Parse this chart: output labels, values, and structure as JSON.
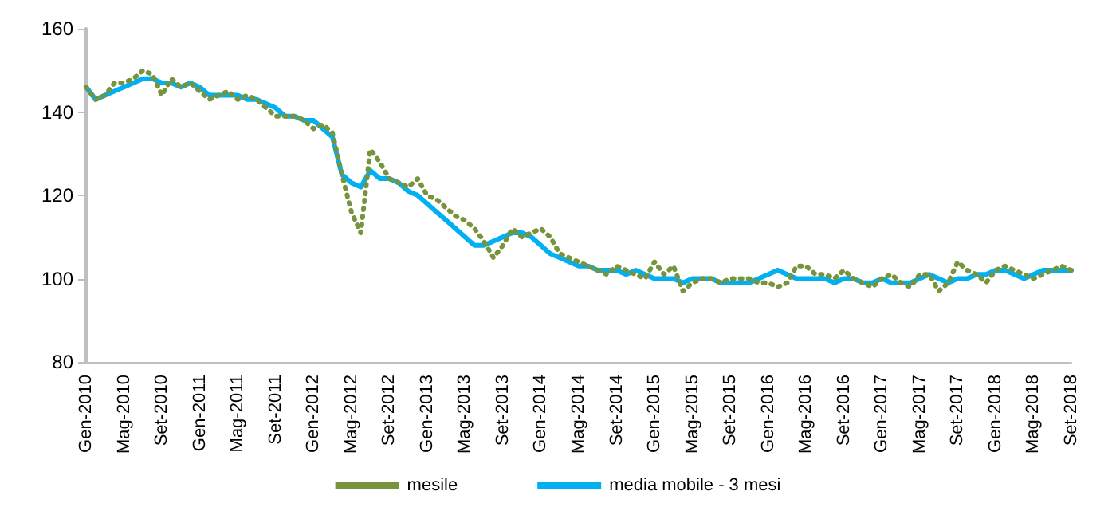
{
  "chart_data": {
    "type": "line",
    "categories": [
      "Gen-2010",
      null,
      null,
      null,
      "Mag-2010",
      null,
      null,
      null,
      "Set-2010",
      null,
      null,
      null,
      "Gen-2011",
      null,
      null,
      null,
      "Mag-2011",
      null,
      null,
      null,
      "Set-2011",
      null,
      null,
      null,
      "Gen-2012",
      null,
      null,
      null,
      "Mag-2012",
      null,
      null,
      null,
      "Set-2012",
      null,
      null,
      null,
      "Gen-2013",
      null,
      null,
      null,
      "Mag-2013",
      null,
      null,
      null,
      "Set-2013",
      null,
      null,
      null,
      "Gen-2014",
      null,
      null,
      null,
      "Mag-2014",
      null,
      null,
      null,
      "Set-2014",
      null,
      null,
      null,
      "Gen-2015",
      null,
      null,
      null,
      "Mag-2015",
      null,
      null,
      null,
      "Set-2015",
      null,
      null,
      null,
      "Gen-2016",
      null,
      null,
      null,
      "Mag-2016",
      null,
      null,
      null,
      "Set-2016",
      null,
      null,
      null,
      "Gen-2017",
      null,
      null,
      null,
      "Mag-2017",
      null,
      null,
      null,
      "Set-2017",
      null,
      null,
      null,
      "Gen-2018",
      null,
      null,
      null,
      "Mag-2018",
      null,
      null,
      null,
      "Set-2018"
    ],
    "series": [
      {
        "name": "mesile",
        "color": "#77933c",
        "line_style": "dotted",
        "values": [
          146,
          143,
          144,
          147,
          147,
          148,
          150,
          149,
          144,
          148,
          146,
          147,
          145,
          143,
          144,
          145,
          143,
          144,
          143,
          141,
          139,
          139,
          139,
          138,
          136,
          137,
          135,
          125,
          116,
          111,
          131,
          128,
          124,
          123,
          122,
          124,
          120,
          119,
          117,
          115,
          114,
          112,
          109,
          105,
          108,
          112,
          110,
          111,
          112,
          110,
          106,
          105,
          104,
          103,
          102,
          101,
          103,
          102,
          101,
          100,
          104,
          101,
          103,
          97,
          99,
          100,
          100,
          99,
          100,
          100,
          100,
          99,
          99,
          98,
          99,
          103,
          103,
          101,
          101,
          100,
          102,
          100,
          99,
          98,
          100,
          101,
          99,
          98,
          101,
          101,
          97,
          99,
          104,
          102,
          101,
          99,
          102,
          103,
          102,
          101,
          100,
          101,
          102,
          103,
          102
        ]
      },
      {
        "name": "media mobile - 3 mesi",
        "color": "#00b0f0",
        "line_style": "solid",
        "values": [
          146,
          143,
          144,
          145,
          146,
          147,
          148,
          148,
          147,
          147,
          146,
          147,
          146,
          144,
          144,
          144,
          144,
          143,
          143,
          142,
          141,
          139,
          139,
          138,
          138,
          136,
          134,
          125,
          123,
          122,
          126,
          124,
          124,
          123,
          121,
          120,
          118,
          116,
          114,
          112,
          110,
          108,
          108,
          109,
          110,
          111,
          111,
          110,
          108,
          106,
          105,
          104,
          103,
          103,
          102,
          102,
          102,
          101,
          102,
          101,
          100,
          100,
          100,
          99,
          100,
          100,
          100,
          99,
          99,
          99,
          99,
          100,
          101,
          102,
          101,
          100,
          100,
          100,
          100,
          99,
          100,
          100,
          99,
          99,
          100,
          99,
          99,
          99,
          100,
          101,
          100,
          99,
          100,
          100,
          101,
          101,
          102,
          102,
          101,
          100,
          101,
          102,
          102,
          102,
          102
        ]
      }
    ],
    "ylim": [
      80,
      160
    ],
    "yticks": [
      80,
      100,
      120,
      140,
      160
    ],
    "grid": false,
    "legend": "bottom",
    "marker": "none"
  }
}
